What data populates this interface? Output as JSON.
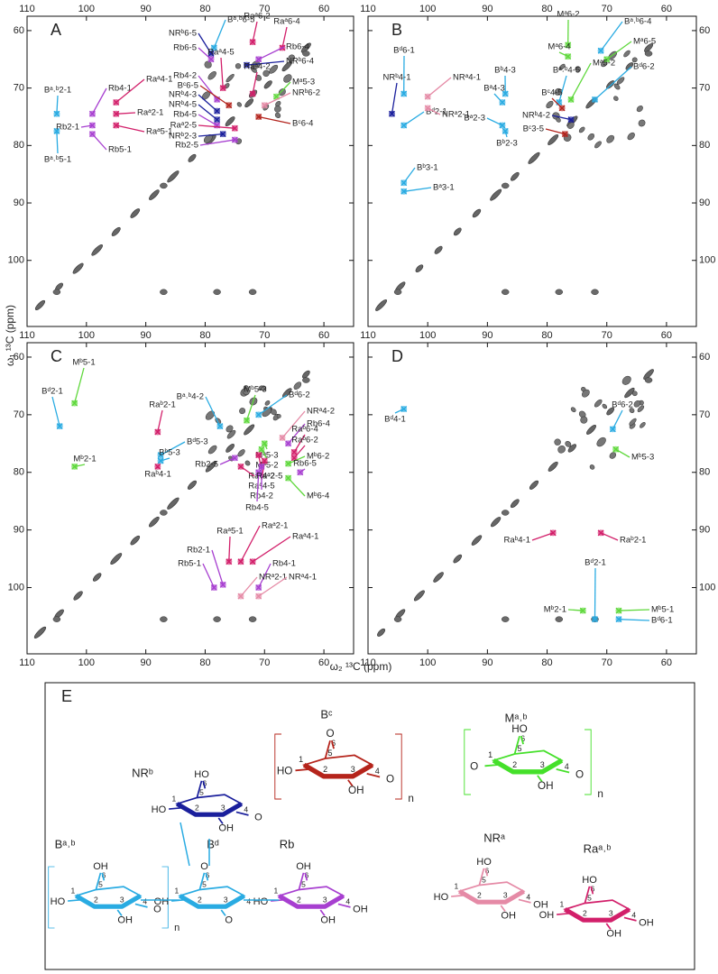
{
  "figure": {
    "x_label": "ω₂ ¹³C (ppm)",
    "y_label": "ω₁ ¹³C (ppm)"
  },
  "chart_data": [
    {
      "type": "scatter",
      "panel_label": "A",
      "xlim": [
        110,
        55
      ],
      "ylim": [
        57.5,
        111.5
      ],
      "xticks": [
        110,
        100,
        90,
        80,
        70,
        60
      ],
      "yticks": [
        60,
        70,
        80,
        90,
        100
      ],
      "x_tick_sides": [
        "top"
      ],
      "y_tick_side": "left",
      "annotations": [
        {
          "text": "Bᵃ˒ᵇ2-1",
          "x": 105,
          "y": 74.5,
          "color": "#29abe2"
        },
        {
          "text": "Bᵃ˒ᵇ5-1",
          "x": 105,
          "y": 77.5,
          "color": "#29abe2"
        },
        {
          "text": "Rb4-1",
          "x": 99,
          "y": 74.5,
          "color": "#a73fd0"
        },
        {
          "text": "Rb2-1",
          "x": 99,
          "y": 76.5,
          "color": "#a73fd0"
        },
        {
          "text": "Rb5-1",
          "x": 99,
          "y": 78,
          "color": "#a73fd0"
        },
        {
          "text": "Raᵃ4-1",
          "x": 95,
          "y": 72.5,
          "color": "#d21f6a"
        },
        {
          "text": "Raᵃ2-1",
          "x": 95,
          "y": 74.5,
          "color": "#d21f6a"
        },
        {
          "text": "Raᵃ5-1",
          "x": 95,
          "y": 76.5,
          "color": "#d21f6a"
        },
        {
          "text": "Bᵃ˒ᵇ6-5",
          "x": 78.5,
          "y": 63,
          "color": "#29abe2"
        },
        {
          "text": "NRᵇ6-5",
          "x": 79,
          "y": 64,
          "color": "#1a1f9c"
        },
        {
          "text": "Rb6-5",
          "x": 79,
          "y": 65,
          "color": "#a73fd0"
        },
        {
          "text": "Raᵃ6-2",
          "x": 72,
          "y": 62,
          "color": "#d21f6a"
        },
        {
          "text": "Raᵃ6-4",
          "x": 67,
          "y": 63,
          "color": "#d21f6a"
        },
        {
          "text": "Rb6-4",
          "x": 71,
          "y": 65,
          "color": "#a73fd0"
        },
        {
          "text": "NRᵇ6-4",
          "x": 73,
          "y": 66,
          "color": "#1a1f9c"
        },
        {
          "text": "Raᵃ4-5",
          "x": 77,
          "y": 70,
          "color": "#d21f6a"
        },
        {
          "text": "Raᵃ4-2",
          "x": 72,
          "y": 71,
          "color": "#d21f6a"
        },
        {
          "text": "Rb4-2",
          "x": 78,
          "y": 72,
          "color": "#a73fd0"
        },
        {
          "text": "Mᵃ5-3",
          "x": 68,
          "y": 71.5,
          "color": "#5fd83c"
        },
        {
          "text": "Bᶜ6-5",
          "x": 76,
          "y": 73,
          "color": "#b3241d"
        },
        {
          "text": "NRᵇ6-2",
          "x": 70,
          "y": 73,
          "color": "#e58aa6"
        },
        {
          "text": "NRᵇ4-3",
          "x": 78,
          "y": 74,
          "color": "#1a1f9c"
        },
        {
          "text": "NRᵇ4-5",
          "x": 78,
          "y": 75.5,
          "color": "#1a1f9c"
        },
        {
          "text": "Rb4-5",
          "x": 78,
          "y": 76.5,
          "color": "#a73fd0"
        },
        {
          "text": "Raᵃ2-5",
          "x": 75,
          "y": 77,
          "color": "#d21f6a"
        },
        {
          "text": "NRᵇ2-3",
          "x": 77,
          "y": 78,
          "color": "#1a1f9c"
        },
        {
          "text": "Bᶜ6-4",
          "x": 71,
          "y": 75,
          "color": "#b3241d"
        },
        {
          "text": "Rb2-5",
          "x": 75,
          "y": 79,
          "color": "#a73fd0"
        }
      ]
    },
    {
      "type": "scatter",
      "panel_label": "B",
      "xlim": [
        110,
        55
      ],
      "ylim": [
        57.5,
        111.5
      ],
      "xticks": [
        110,
        100,
        90,
        80,
        70,
        60
      ],
      "yticks": [
        60,
        70,
        80,
        90,
        100
      ],
      "x_tick_sides": [
        "top"
      ],
      "y_tick_side": "right",
      "annotations": [
        {
          "text": "Bᵈ6-1",
          "x": 104,
          "y": 71,
          "color": "#29abe2"
        },
        {
          "text": "NRᵇ4-1",
          "x": 106,
          "y": 74.5,
          "color": "#1a1f9c"
        },
        {
          "text": "Bᵈ2-1",
          "x": 104,
          "y": 76.5,
          "color": "#29abe2"
        },
        {
          "text": "NRᵃ4-1",
          "x": 100,
          "y": 71.5,
          "color": "#e58aa6"
        },
        {
          "text": "NRᵃ2-1",
          "x": 100,
          "y": 73.5,
          "color": "#e58aa6"
        },
        {
          "text": "Bᵇ4-3",
          "x": 87,
          "y": 71,
          "color": "#29abe2"
        },
        {
          "text": "Bᵃ4-3",
          "x": 87.5,
          "y": 72.5,
          "color": "#29abe2"
        },
        {
          "text": "Bᵃ2-3",
          "x": 87.5,
          "y": 76.5,
          "color": "#29abe2"
        },
        {
          "text": "Bᵇ2-3",
          "x": 87,
          "y": 77.5,
          "color": "#29abe2"
        },
        {
          "text": "Bᵇ3-1",
          "x": 104,
          "y": 86.5,
          "color": "#29abe2"
        },
        {
          "text": "Bᵃ3-1",
          "x": 104,
          "y": 88,
          "color": "#29abe2"
        },
        {
          "text": "Mᵃ6-2",
          "x": 76.5,
          "y": 62.5,
          "color": "#5fd83c"
        },
        {
          "text": "Mᵃ6-4",
          "x": 76.5,
          "y": 64.5,
          "color": "#5fd83c"
        },
        {
          "text": "Bᵃ˒ᵇ6-4",
          "x": 71,
          "y": 63.5,
          "color": "#29abe2"
        },
        {
          "text": "Mᵃ6-5",
          "x": 70,
          "y": 65,
          "color": "#5fd83c"
        },
        {
          "text": "Mᵃ5-2",
          "x": 76,
          "y": 72,
          "color": "#5fd83c"
        },
        {
          "text": "Bᵃ˒ᵇ4-5",
          "x": 78,
          "y": 72.5,
          "color": "#29abe2"
        },
        {
          "text": "Bᵈ6-2",
          "x": 72,
          "y": 72,
          "color": "#29abe2"
        },
        {
          "text": "Bᶜ4-5",
          "x": 77.5,
          "y": 73.5,
          "color": "#b3241d"
        },
        {
          "text": "NRᵇ4-2",
          "x": 76,
          "y": 75.5,
          "color": "#1a1f9c"
        },
        {
          "text": "Bᶜ3-5",
          "x": 77,
          "y": 78,
          "color": "#b3241d"
        }
      ]
    },
    {
      "type": "scatter",
      "panel_label": "C",
      "xlim": [
        110,
        55
      ],
      "ylim": [
        57.5,
        111.5
      ],
      "xticks": [
        110,
        100,
        90,
        80,
        70,
        60
      ],
      "yticks": [
        60,
        70,
        80,
        90,
        100
      ],
      "x_tick_sides": [
        "top",
        "bottom"
      ],
      "y_tick_side": "left",
      "annotations": [
        {
          "text": "Mᵇ5-1",
          "x": 102,
          "y": 68,
          "color": "#5fd83c"
        },
        {
          "text": "Bᵈ2-1",
          "x": 104.5,
          "y": 72,
          "color": "#29abe2"
        },
        {
          "text": "Mᵇ2-1",
          "x": 102,
          "y": 79,
          "color": "#5fd83c"
        },
        {
          "text": "Raᵇ2-1",
          "x": 88,
          "y": 73,
          "color": "#d21f6a"
        },
        {
          "text": "Bᵈ5-3",
          "x": 87.5,
          "y": 77,
          "color": "#29abe2"
        },
        {
          "text": "Bᵇ5-3",
          "x": 87.5,
          "y": 78,
          "color": "#29abe2"
        },
        {
          "text": "Raᵇ4-1",
          "x": 88,
          "y": 79,
          "color": "#d21f6a"
        },
        {
          "text": "Bᵃ˒ᵇ4-2",
          "x": 77.5,
          "y": 72,
          "color": "#29abe2"
        },
        {
          "text": "Mᵇ5-3",
          "x": 73,
          "y": 71,
          "color": "#5fd83c"
        },
        {
          "text": "Bᵈ6-2",
          "x": 71,
          "y": 70,
          "color": "#29abe2"
        },
        {
          "text": "NRᵃ4-2",
          "x": 67,
          "y": 74,
          "color": "#e58aa6"
        },
        {
          "text": "Rb6-4",
          "x": 66,
          "y": 75,
          "color": "#a73fd0"
        },
        {
          "text": "Raᵇ6-4",
          "x": 65,
          "y": 76.5,
          "color": "#d21f6a"
        },
        {
          "text": "Raᵇ6-2",
          "x": 65,
          "y": 77.5,
          "color": "#d21f6a"
        },
        {
          "text": "Mᵇ6-2",
          "x": 66,
          "y": 78.5,
          "color": "#5fd83c"
        },
        {
          "text": "Rb6-5",
          "x": 64,
          "y": 80,
          "color": "#a73fd0"
        },
        {
          "text": "Mᵇ6-4",
          "x": 66,
          "y": 81,
          "color": "#5fd83c"
        },
        {
          "text": "Mᵃ5-3",
          "x": 70,
          "y": 75,
          "color": "#5fd83c"
        },
        {
          "text": "Mᵃ5-2",
          "x": 70.5,
          "y": 76,
          "color": "#5fd83c"
        },
        {
          "text": "Raᵃ4-2",
          "x": 71,
          "y": 77,
          "color": "#d21f6a"
        },
        {
          "text": "Raᵃ4-5",
          "x": 70,
          "y": 78,
          "color": "#d21f6a"
        },
        {
          "text": "Rb4-2",
          "x": 70.5,
          "y": 79,
          "color": "#a73fd0"
        },
        {
          "text": "Rb4-5",
          "x": 71,
          "y": 80,
          "color": "#a73fd0"
        },
        {
          "text": "Rb2-5",
          "x": 75,
          "y": 77.5,
          "color": "#a73fd0"
        },
        {
          "text": "Raᵃ2-5",
          "x": 74,
          "y": 79,
          "color": "#d21f6a"
        },
        {
          "text": "Raᵃ5-1",
          "x": 76,
          "y": 95.5,
          "color": "#d21f6a"
        },
        {
          "text": "Raᵃ2-1",
          "x": 74,
          "y": 95.5,
          "color": "#d21f6a"
        },
        {
          "text": "Raᵃ4-1",
          "x": 72,
          "y": 95.5,
          "color": "#d21f6a"
        },
        {
          "text": "Rb2-1",
          "x": 77,
          "y": 99.5,
          "color": "#a73fd0"
        },
        {
          "text": "Rb5-1",
          "x": 78.5,
          "y": 100,
          "color": "#a73fd0"
        },
        {
          "text": "Rb4-1",
          "x": 71,
          "y": 100,
          "color": "#a73fd0"
        },
        {
          "text": "NRᵃ2-1",
          "x": 74,
          "y": 101.5,
          "color": "#e58aa6"
        },
        {
          "text": "NRᵃ4-1",
          "x": 71,
          "y": 101.5,
          "color": "#e58aa6"
        }
      ]
    },
    {
      "type": "scatter",
      "panel_label": "D",
      "xlim": [
        110,
        55
      ],
      "ylim": [
        57.5,
        111.5
      ],
      "xticks": [
        110,
        100,
        90,
        80,
        70,
        60
      ],
      "yticks": [
        60,
        70,
        80,
        90,
        100
      ],
      "x_tick_sides": [
        "top",
        "bottom"
      ],
      "y_tick_side": "right",
      "annotations": [
        {
          "text": "Bᵈ4-1",
          "x": 104,
          "y": 69,
          "color": "#29abe2"
        },
        {
          "text": "Bᵈ6-2",
          "x": 69,
          "y": 72.5,
          "color": "#29abe2"
        },
        {
          "text": "Mᵇ5-3",
          "x": 68.5,
          "y": 76,
          "color": "#5fd83c"
        },
        {
          "text": "Raᵇ4-1",
          "x": 79,
          "y": 90.5,
          "color": "#d21f6a"
        },
        {
          "text": "Raᵇ2-1",
          "x": 71,
          "y": 90.5,
          "color": "#d21f6a"
        },
        {
          "text": "Bᵈ2-1",
          "x": 72,
          "y": 105.5,
          "color": "#29abe2"
        },
        {
          "text": "Mᵇ2-1",
          "x": 74,
          "y": 104,
          "color": "#5fd83c"
        },
        {
          "text": "Mᵇ5-1",
          "x": 68,
          "y": 104,
          "color": "#5fd83c"
        },
        {
          "text": "Bᵈ6-1",
          "x": 68,
          "y": 105.5,
          "color": "#29abe2"
        }
      ]
    }
  ],
  "structure": {
    "label": "E",
    "residues": [
      {
        "name": "Bᶜ",
        "color": "#b5241b",
        "atoms": [
          "1",
          "2",
          "3",
          "4",
          "5",
          "6"
        ],
        "groups": [
          "O",
          "HO",
          "OH",
          "O"
        ],
        "repeat": "n"
      },
      {
        "name": "Mᵃ˒ᵇ",
        "color": "#45e02a",
        "atoms": [
          "1",
          "2",
          "3",
          "4",
          "5",
          "6"
        ],
        "groups": [
          "HO",
          "O",
          "OH",
          "O"
        ],
        "repeat": "n"
      },
      {
        "name": "NRᵇ",
        "color": "#1a1f9c",
        "atoms": [
          "1",
          "2",
          "3",
          "4",
          "5",
          "6"
        ],
        "groups": [
          "HO",
          "HO",
          "OH",
          "O"
        ]
      },
      {
        "name": "Bᵃ˒ᵇ",
        "color": "#29abe2",
        "atoms": [
          "1",
          "2",
          "3",
          "4",
          "5",
          "6"
        ],
        "groups": [
          "OH",
          "HO",
          "OH",
          "O"
        ],
        "repeat": "n"
      },
      {
        "name": "Bᵈ",
        "color": "#29abe2",
        "atoms": [
          "1",
          "2",
          "3",
          "4",
          "5",
          "6"
        ],
        "groups": [
          "O",
          "OH",
          "O"
        ]
      },
      {
        "name": "Rb",
        "color": "#a73fd0",
        "atoms": [
          "1",
          "2",
          "3",
          "4",
          "5",
          "6"
        ],
        "groups": [
          "OH",
          "HO",
          "OH",
          "OH"
        ]
      },
      {
        "name": "NRᵃ",
        "color": "#e58aa6",
        "atoms": [
          "1",
          "2",
          "3",
          "4",
          "5",
          "6"
        ],
        "groups": [
          "HO",
          "HO",
          "OH",
          "OH"
        ]
      },
      {
        "name": "Raᵃ˒ᵇ",
        "color": "#d21f6a",
        "atoms": [
          "1",
          "2",
          "3",
          "4",
          "5",
          "6"
        ],
        "groups": [
          "HO",
          "OH",
          "OH",
          "OH"
        ]
      }
    ]
  }
}
